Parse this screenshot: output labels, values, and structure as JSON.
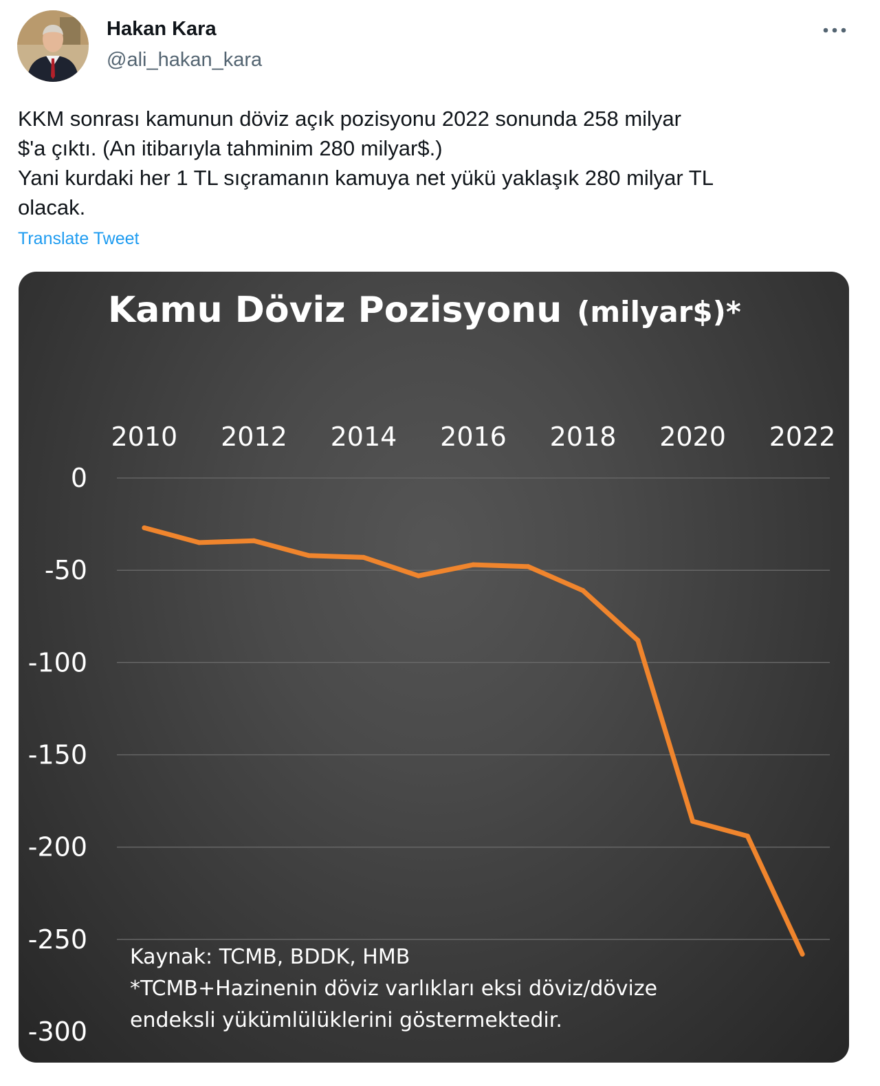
{
  "author": {
    "display_name": "Hakan Kara",
    "handle": "@ali_hakan_kara"
  },
  "tweet": {
    "lines": [
      "KKM sonrası kamunun döviz açık pozisyonu 2022 sonunda 258 milyar",
      "$'a çıktı. (An itibarıyla tahminim 280 milyar$.)",
      "Yani kurdaki her 1 TL sıçramanın kamuya net yükü yaklaşık 280 milyar TL",
      "olacak."
    ],
    "translate_label": "Translate Tweet"
  },
  "icons": {
    "more": "more-horizontal-icon",
    "avatar": "profile-photo"
  },
  "colors": {
    "link": "#1d9bf0",
    "handle": "#536471",
    "line": "#f0852d",
    "chart_background": "#444444"
  },
  "chart_data": {
    "type": "line",
    "title": "Kamu Döviz Pozisyonu",
    "title_suffix": "(milyar$)*",
    "x_tick_labels": [
      "2010",
      "2012",
      "2014",
      "2016",
      "2018",
      "2020",
      "2022"
    ],
    "y_tick_labels": [
      "0",
      "-50",
      "-100",
      "-150",
      "-200",
      "-250",
      "-300"
    ],
    "x_axis_position": "top",
    "xlim": [
      2009.5,
      2022.5
    ],
    "ylim": [
      -300,
      0
    ],
    "grid": true,
    "legend": "none",
    "series": [
      {
        "x": [
          2010,
          2011,
          2012,
          2013,
          2014,
          2015,
          2016,
          2017,
          2018,
          2019,
          2020,
          2021,
          2022
        ],
        "values": [
          -27,
          -35,
          -34,
          -42,
          -43,
          -53,
          -47,
          -48,
          -61,
          -88,
          -186,
          -194,
          -258
        ]
      }
    ],
    "notes": [
      "Kaynak:  TCMB, BDDK, HMB",
      "*TCMB+Hazinenin döviz varlıkları eksi döviz/dövize",
      "endeksli yükümlülüklerini göstermektedir."
    ]
  }
}
